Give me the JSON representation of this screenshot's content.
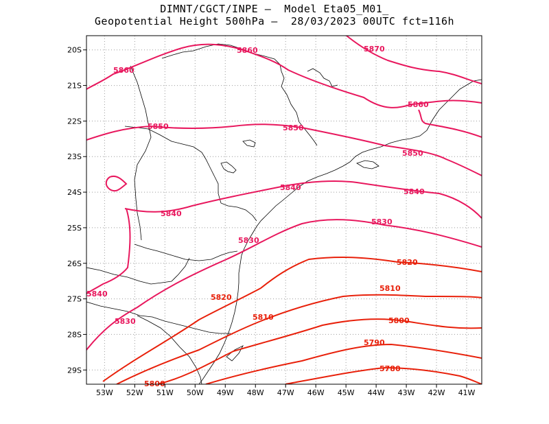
{
  "title_line1": "DIMNT/CGCT/INPE —  Model Eta05_M01_",
  "title_line2": "Geopotential Height 500hPa —  28/03/2023 00UTC fct=116h",
  "axes": {
    "lon_ticks": [
      "53W",
      "52W",
      "51W",
      "50W",
      "49W",
      "48W",
      "47W",
      "46W",
      "45W",
      "44W",
      "43W",
      "42W",
      "41W"
    ],
    "lat_ticks": [
      "20S",
      "21S",
      "22S",
      "23S",
      "24S",
      "25S",
      "26S",
      "27S",
      "28S",
      "29S"
    ]
  },
  "colors": {
    "contour_high": "#e8175d",
    "contour_low": "#e8200a",
    "coastline": "#000000",
    "grid": "#999999"
  },
  "chart_data": {
    "type": "contour map",
    "variable": "Geopotential Height 500hPa",
    "lon_range": [
      -53.6,
      -40.5
    ],
    "lat_range": [
      -29.4,
      -19.6
    ],
    "grid": true,
    "contours": [
      {
        "level": 5860,
        "labels": [
          "5860",
          "5860",
          "5860"
        ]
      },
      {
        "level": 5870,
        "labels": [
          "5870"
        ]
      },
      {
        "level": 5850,
        "labels": [
          "5850",
          "5850",
          "5850"
        ]
      },
      {
        "level": 5840,
        "labels": [
          "5840",
          "5840",
          "5840",
          "5840"
        ]
      },
      {
        "level": 5830,
        "labels": [
          "5830",
          "5830",
          "5830"
        ]
      },
      {
        "level": 5820,
        "labels": [
          "5820",
          "5820"
        ]
      },
      {
        "level": 5810,
        "labels": [
          "5810",
          "5810"
        ]
      },
      {
        "level": 5800,
        "labels": [
          "5800",
          "5800"
        ]
      },
      {
        "level": 5790,
        "labels": [
          "5790"
        ]
      },
      {
        "level": 5780,
        "labels": [
          "5780"
        ]
      }
    ]
  }
}
